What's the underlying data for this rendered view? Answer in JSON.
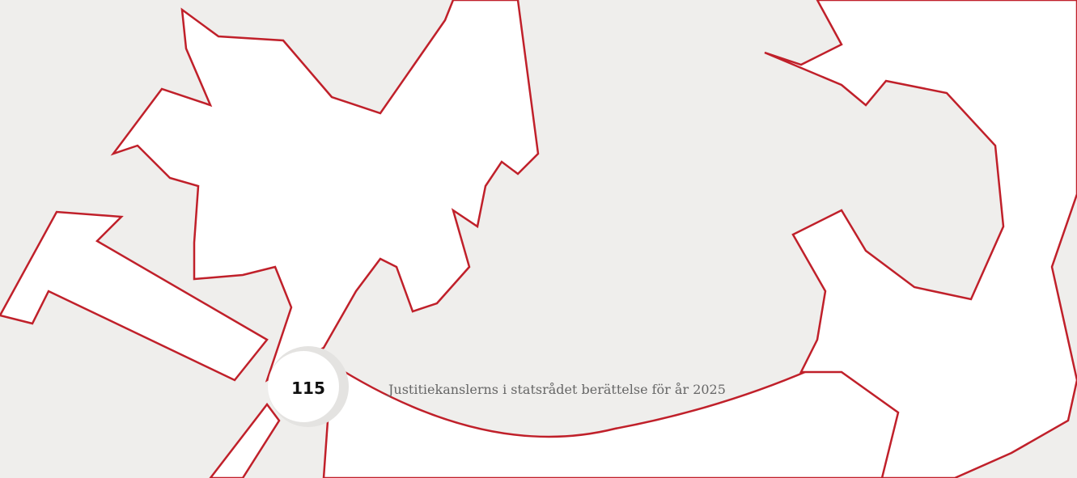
{
  "footer": {
    "page_number": "115",
    "title": "Justitiekanslerns i statsrådet berättelse för år 2025"
  }
}
